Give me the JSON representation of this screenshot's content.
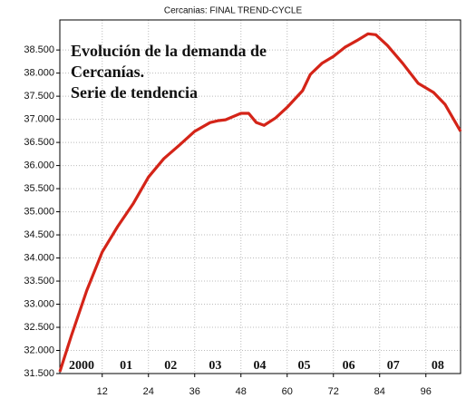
{
  "chart_data": {
    "type": "line",
    "title": "Cercanias: FINAL TREND-CYCLE",
    "annotation": [
      "Evolución de la demanda de",
      "Cercanías.",
      "Serie de tendencia"
    ],
    "period_labels": [
      "2000",
      "01",
      "02",
      "03",
      "04",
      "05",
      "06",
      "07",
      "08"
    ],
    "x": [
      1,
      4,
      8,
      12,
      16,
      20,
      24,
      28,
      32,
      36,
      40,
      42,
      44,
      48,
      50,
      52,
      54,
      57,
      60,
      64,
      66,
      69,
      72,
      75,
      78,
      81,
      83,
      86,
      90,
      94,
      98,
      101,
      105
    ],
    "series": [
      {
        "name": "FINAL TREND-CYCLE",
        "color": "#d42418",
        "values": [
          31540,
          32320,
          33300,
          34130,
          34680,
          35170,
          35750,
          36150,
          36440,
          36740,
          36930,
          36970,
          36990,
          37130,
          37130,
          36930,
          36870,
          37030,
          37260,
          37620,
          37970,
          38210,
          38360,
          38560,
          38700,
          38850,
          38830,
          38600,
          38210,
          37780,
          37580,
          37320,
          36740
        ]
      }
    ],
    "xlim": [
      1,
      105
    ],
    "xticks": [
      12,
      24,
      36,
      48,
      60,
      72,
      84,
      96
    ],
    "ylim": [
      31500,
      39150
    ],
    "yticks": [
      {
        "value": 31500,
        "label": "31.500"
      },
      {
        "value": 32000,
        "label": "32.000"
      },
      {
        "value": 32500,
        "label": "32.500"
      },
      {
        "value": 33000,
        "label": "33.000"
      },
      {
        "value": 33500,
        "label": "33.500"
      },
      {
        "value": 34000,
        "label": "34.000"
      },
      {
        "value": 34500,
        "label": "34.500"
      },
      {
        "value": 35000,
        "label": "35.000"
      },
      {
        "value": 35500,
        "label": "35.500"
      },
      {
        "value": 36000,
        "label": "36.000"
      },
      {
        "value": 36500,
        "label": "36.500"
      },
      {
        "value": 37000,
        "label": "37.000"
      },
      {
        "value": 37500,
        "label": "37.500"
      },
      {
        "value": 38000,
        "label": "38.000"
      },
      {
        "value": 38500,
        "label": "38.500"
      }
    ],
    "grid": true
  }
}
